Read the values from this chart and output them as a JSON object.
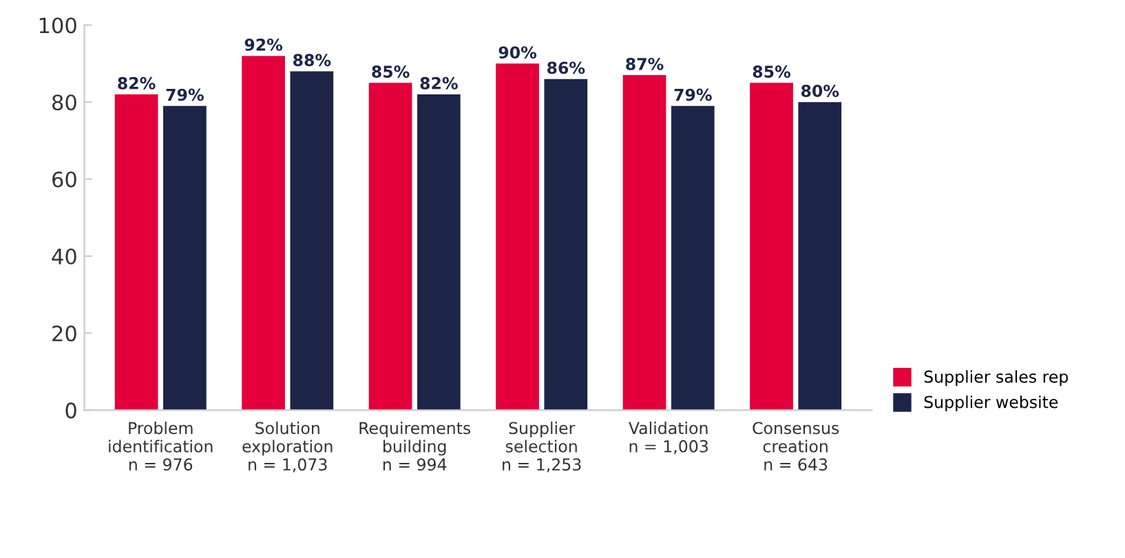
{
  "chart_data": {
    "type": "bar",
    "categories": [
      "Problem\nidentification\nn = 976",
      "Solution\nexploration\nn = 1,073",
      "Requirements\nbuilding\nn = 994",
      "Supplier\nselection\nn = 1,253",
      "Validation\nn = 1,003",
      "Consensus\ncreation\nn = 643"
    ],
    "series": [
      {
        "name": "Supplier sales rep",
        "color": "#e4003b",
        "values": [
          82,
          92,
          85,
          90,
          87,
          85
        ],
        "value_labels": [
          "82%",
          "92%",
          "85%",
          "90%",
          "87%",
          "85%"
        ]
      },
      {
        "name": "Supplier website",
        "color": "#1c2548",
        "values": [
          79,
          88,
          82,
          86,
          79,
          80
        ],
        "value_labels": [
          "79%",
          "88%",
          "82%",
          "86%",
          "79%",
          "80%"
        ]
      }
    ],
    "ylim": [
      0,
      100
    ],
    "yticks": [
      0,
      20,
      40,
      60,
      80,
      100
    ],
    "grid": false,
    "legend": "right"
  }
}
